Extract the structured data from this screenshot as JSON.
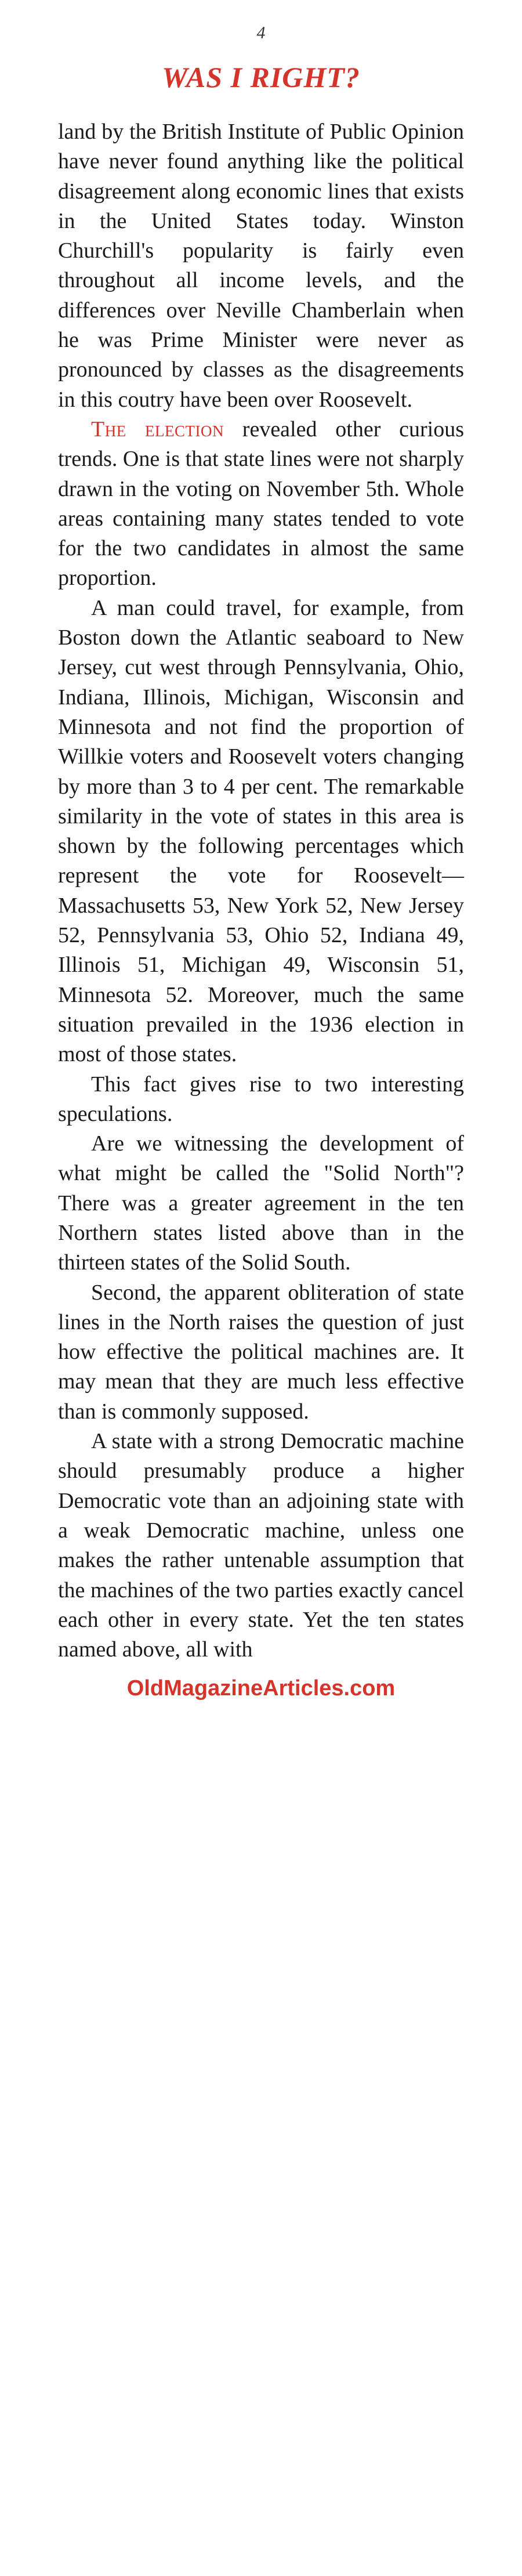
{
  "page_number": "4",
  "title": "WAS I RIGHT?",
  "paragraphs": [
    "land by the British Institute of Public Opinion have never found anything like the political disagreement along economic lines that exists in the United States today. Winston Churchill's popularity is fairly even throughout all income levels, and the differences over Neville Chamberlain when he was Prime Minister were never as pronounced by classes as the disagreements in this coutry have been over Roosevelt.",
    "revealed other curious trends. One is that state lines were not sharply drawn in the voting on November 5th. Whole areas containing many states tended to vote for the two candidates in almost the same proportion.",
    "A man could travel, for example, from Boston down the Atlantic seaboard to New Jersey, cut west through Pennsylvania, Ohio, Indiana, Illinois, Michigan, Wisconsin and Minnesota and not find the proportion of Willkie voters and Roosevelt voters changing by more than 3 to 4 per cent. The remarkable similarity in the vote of states in this area is shown by the following percentages which represent the vote for Roosevelt—Massachusetts 53, New York 52, New Jersey 52, Pennsylvania 53, Ohio 52, Indiana 49, Illinois 51, Michigan 49, Wisconsin 51, Minnesota 52. Moreover, much the same situation prevailed in the 1936 election in most of those states.",
    "This fact gives rise to two interesting speculations.",
    "Are we witnessing the development of what might be called the \"Solid North\"? There was a greater agreement in the ten Northern states listed above than in the thirteen states of the Solid South.",
    "Second, the apparent obliteration of state lines in the North raises the question of just how effective the political machines are. It may mean that they are much less effective than is commonly supposed.",
    "A state with a strong Democratic machine should presumably produce a higher Democratic vote than an adjoining state with a weak Democratic machine, unless one makes the rather untenable assumption that the machines of the two parties exactly cancel each other in every state. Yet the ten states named above, all with"
  ],
  "lead_in_red": "The election",
  "footer": "OldMagazineArticles.com",
  "colors": {
    "red": "#d4342a",
    "text": "#1a1a1a",
    "background": "#ffffff"
  },
  "typography": {
    "body_fontsize": 38,
    "title_fontsize": 50,
    "line_height": 1.35
  }
}
